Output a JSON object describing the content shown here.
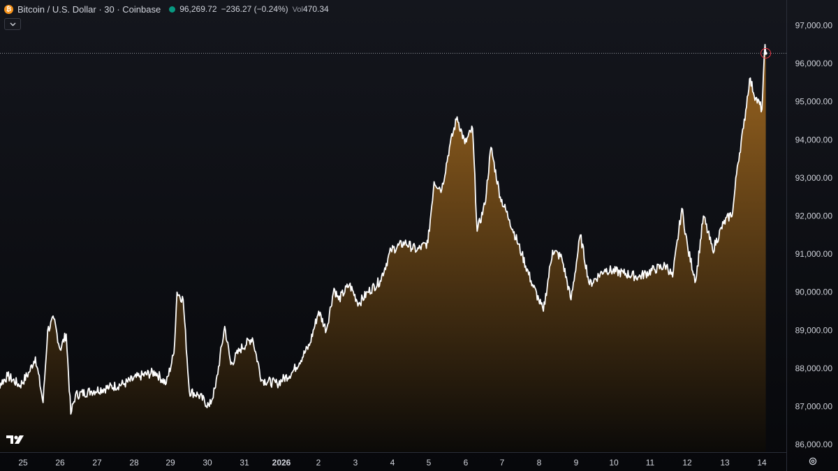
{
  "header": {
    "title": "Bitcoin / U.S. Dollar · 30 · Coinbase",
    "coin_icon": "bitcoin-icon",
    "coin_symbol": "₿",
    "price": "96,269.72",
    "change": "−236.27 (−0.24%)",
    "volume_label": "Vol",
    "volume_value": "470.34"
  },
  "colors": {
    "background_top": "#14161d",
    "background_bottom": "#07080b",
    "line": "#ffffff",
    "fill_top": "#8a5a1c",
    "fill_bottom": "#0b0a08",
    "coin": "#f7931a",
    "market_status": "#089981",
    "axis_text": "#d1d4dc",
    "price_marker": "#f23645"
  },
  "icons": {
    "collapse": "chevron-down-icon",
    "logo": "tradingview-logo",
    "settings": "gear-icon"
  },
  "chart_data": {
    "type": "area",
    "symbol": "Bitcoin / U.S. Dollar",
    "interval": "30",
    "exchange": "Coinbase",
    "last_price": 96269.72,
    "last_price_line": "dotted",
    "x_labels": [
      "25",
      "26",
      "27",
      "28",
      "29",
      "30",
      "31",
      "2026",
      "2",
      "3",
      "4",
      "5",
      "6",
      "7",
      "8",
      "9",
      "10",
      "11",
      "12",
      "13",
      "14"
    ],
    "y_ticks": [
      "97,000.00",
      "96,000.00",
      "95,000.00",
      "94,000.00",
      "93,000.00",
      "92,000.00",
      "91,000.00",
      "90,000.00",
      "89,000.00",
      "88,000.00",
      "87,000.00",
      "86,000.00"
    ],
    "y_tick_values": [
      97000,
      96000,
      95000,
      94000,
      93000,
      92000,
      91000,
      90000,
      89000,
      88000,
      87000,
      86000
    ],
    "ylim": [
      85750,
      97400
    ],
    "x_range_days": [
      24.4,
      14.36
    ],
    "series": [
      {
        "points": [
          [
            "2025-12-24 08:00",
            87300
          ],
          [
            "2025-12-24 20:00",
            87800
          ],
          [
            "2025-12-25 04:00",
            87550
          ],
          [
            "2025-12-25 10:00",
            87900
          ],
          [
            "2025-12-25 14:00",
            88300
          ],
          [
            "2025-12-25 19:00",
            87100
          ],
          [
            "2025-12-25 22:00",
            89000
          ],
          [
            "2025-12-26 02:00",
            89300
          ],
          [
            "2025-12-26 06:00",
            88500
          ],
          [
            "2025-12-26 10:00",
            88900
          ],
          [
            "2025-12-26 13:00",
            86800
          ],
          [
            "2025-12-26 16:00",
            87300
          ],
          [
            "2025-12-27 02:00",
            87400
          ],
          [
            "2025-12-27 14:00",
            87500
          ],
          [
            "2025-12-28 00:00",
            87600
          ],
          [
            "2025-12-28 10:00",
            87800
          ],
          [
            "2025-12-28 20:00",
            87900
          ],
          [
            "2025-12-29 03:00",
            87600
          ],
          [
            "2025-12-29 08:00",
            88400
          ],
          [
            "2025-12-29 10:00",
            90000
          ],
          [
            "2025-12-29 14:00",
            89800
          ],
          [
            "2025-12-29 18:00",
            87400
          ],
          [
            "2025-12-30 00:00",
            87300
          ],
          [
            "2025-12-30 07:00",
            87000
          ],
          [
            "2025-12-30 11:00",
            87500
          ],
          [
            "2025-12-30 17:00",
            89100
          ],
          [
            "2025-12-30 21:00",
            88100
          ],
          [
            "2025-12-31 03:00",
            88500
          ],
          [
            "2025-12-31 11:00",
            88800
          ],
          [
            "2025-12-31 17:00",
            87700
          ],
          [
            "2026-01-01 03:00",
            87600
          ],
          [
            "2026-01-01 13:00",
            87900
          ],
          [
            "2026-01-02 00:00",
            88600
          ],
          [
            "2026-01-02 06:00",
            89500
          ],
          [
            "2026-01-02 11:00",
            89000
          ],
          [
            "2026-01-02 16:00",
            90100
          ],
          [
            "2026-01-02 19:00",
            89800
          ],
          [
            "2026-01-03 02:00",
            90200
          ],
          [
            "2026-01-03 08:00",
            89700
          ],
          [
            "2026-01-03 14:00",
            90000
          ],
          [
            "2026-01-03 22:00",
            90300
          ],
          [
            "2026-01-04 05:00",
            91100
          ],
          [
            "2026-01-04 14:00",
            91300
          ],
          [
            "2026-01-04 22:00",
            91100
          ],
          [
            "2026-01-05 05:00",
            91300
          ],
          [
            "2026-01-05 09:00",
            92900
          ],
          [
            "2026-01-05 14:00",
            92700
          ],
          [
            "2026-01-05 19:00",
            93800
          ],
          [
            "2026-01-06 00:00",
            94600
          ],
          [
            "2026-01-06 05:00",
            93900
          ],
          [
            "2026-01-06 10:00",
            94300
          ],
          [
            "2026-01-06 13:00",
            91600
          ],
          [
            "2026-01-06 18:00",
            92300
          ],
          [
            "2026-01-06 22:00",
            93800
          ],
          [
            "2026-01-07 04:00",
            92500
          ],
          [
            "2026-01-07 10:00",
            91900
          ],
          [
            "2026-01-07 18:00",
            91000
          ],
          [
            "2026-01-08 00:00",
            90300
          ],
          [
            "2026-01-08 05:00",
            89800
          ],
          [
            "2026-01-08 08:00",
            89500
          ],
          [
            "2026-01-08 14:00",
            91100
          ],
          [
            "2026-01-08 20:00",
            90900
          ],
          [
            "2026-01-09 02:00",
            89800
          ],
          [
            "2026-01-09 08:00",
            91500
          ],
          [
            "2026-01-09 14:00",
            90200
          ],
          [
            "2026-01-10 00:00",
            90600
          ],
          [
            "2026-01-10 12:00",
            90500
          ],
          [
            "2026-01-10 22:00",
            90400
          ],
          [
            "2026-01-11 08:00",
            90600
          ],
          [
            "2026-01-11 16:00",
            90700
          ],
          [
            "2026-01-11 20:00",
            90400
          ],
          [
            "2026-01-12 02:00",
            92200
          ],
          [
            "2026-01-12 06:00",
            91100
          ],
          [
            "2026-01-12 11:00",
            90300
          ],
          [
            "2026-01-12 16:00",
            92000
          ],
          [
            "2026-01-12 22:00",
            91100
          ],
          [
            "2026-01-13 05:00",
            91800
          ],
          [
            "2026-01-13 11:00",
            92100
          ],
          [
            "2026-01-13 14:00",
            93300
          ],
          [
            "2026-01-13 18:00",
            94300
          ],
          [
            "2026-01-13 22:00",
            95600
          ],
          [
            "2026-01-14 02:00",
            95100
          ],
          [
            "2026-01-14 06:00",
            94800
          ],
          [
            "2026-01-14 08:00",
            96500
          ],
          [
            "2026-01-14 08:30",
            96270
          ]
        ]
      }
    ]
  }
}
